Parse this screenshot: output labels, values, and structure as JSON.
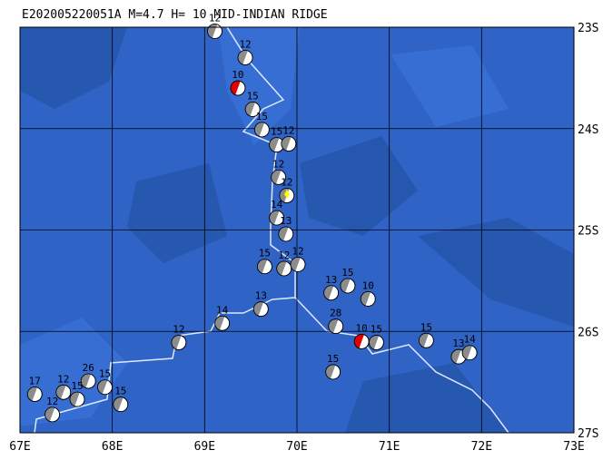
{
  "title": "E202005220051A M=4.7 H= 10 MID-INDIAN RIDGE",
  "lon_ticks": [
    {
      "value": 67,
      "label": "67E"
    },
    {
      "value": 68,
      "label": "68E"
    },
    {
      "value": 69,
      "label": "69E"
    },
    {
      "value": 70,
      "label": "70E"
    },
    {
      "value": 71,
      "label": "71E"
    },
    {
      "value": 72,
      "label": "72E"
    },
    {
      "value": 73,
      "label": "73E"
    }
  ],
  "lat_ticks": [
    {
      "value": 23,
      "label": "23S"
    },
    {
      "value": 24,
      "label": "24S"
    },
    {
      "value": 25,
      "label": "25S"
    },
    {
      "value": 26,
      "label": "26S"
    },
    {
      "value": 27,
      "label": "27S"
    }
  ],
  "events": [
    {
      "lon": 69.11,
      "lat": 23.04,
      "depth": 12,
      "color": "#8c8c8c"
    },
    {
      "lon": 69.44,
      "lat": 23.3,
      "depth": 12,
      "color": "#8c8c8c"
    },
    {
      "lon": 69.52,
      "lat": 23.81,
      "depth": 15,
      "color": "#8c8c8c"
    },
    {
      "lon": 69.62,
      "lat": 24.01,
      "depth": 15,
      "color": "#8c8c8c"
    },
    {
      "lon": 69.78,
      "lat": 24.16,
      "depth": 15,
      "color": "#8c8c8c"
    },
    {
      "lon": 69.91,
      "lat": 24.15,
      "depth": 12,
      "color": "#8c8c8c"
    },
    {
      "lon": 69.8,
      "lat": 24.48,
      "depth": 12,
      "color": "#8c8c8c"
    },
    {
      "lon": 69.89,
      "lat": 24.66,
      "depth": 12,
      "color": "#8c8c8c"
    },
    {
      "lon": 69.78,
      "lat": 24.88,
      "depth": 14,
      "color": "#8c8c8c"
    },
    {
      "lon": 69.88,
      "lat": 25.04,
      "depth": 13,
      "color": "#8c8c8c"
    },
    {
      "lon": 69.65,
      "lat": 25.36,
      "depth": 15,
      "color": "#8c8c8c"
    },
    {
      "lon": 69.86,
      "lat": 25.38,
      "depth": 12,
      "color": "#8c8c8c"
    },
    {
      "lon": 70.01,
      "lat": 25.34,
      "depth": 12,
      "color": "#8c8c8c"
    },
    {
      "lon": 70.37,
      "lat": 25.62,
      "depth": 13,
      "color": "#8c8c8c"
    },
    {
      "lon": 70.55,
      "lat": 25.55,
      "depth": 15,
      "color": "#8c8c8c"
    },
    {
      "lon": 70.77,
      "lat": 25.68,
      "depth": 10,
      "color": "#8c8c8c"
    },
    {
      "lon": 70.42,
      "lat": 25.95,
      "depth": 28,
      "color": "#8c8c8c"
    },
    {
      "lon": 70.86,
      "lat": 26.11,
      "depth": 15,
      "color": "#8c8c8c"
    },
    {
      "lon": 71.4,
      "lat": 26.09,
      "depth": 15,
      "color": "#8c8c8c"
    },
    {
      "lon": 71.75,
      "lat": 26.25,
      "depth": 13,
      "color": "#8c8c8c"
    },
    {
      "lon": 71.87,
      "lat": 26.21,
      "depth": 14,
      "color": "#8c8c8c"
    },
    {
      "lon": 70.39,
      "lat": 26.4,
      "depth": 15,
      "color": "#8c8c8c"
    },
    {
      "lon": 69.61,
      "lat": 25.78,
      "depth": 13,
      "color": "#8c8c8c"
    },
    {
      "lon": 69.19,
      "lat": 25.92,
      "depth": 14,
      "color": "#8c8c8c"
    },
    {
      "lon": 68.72,
      "lat": 26.11,
      "depth": 12,
      "color": "#8c8c8c"
    },
    {
      "lon": 68.09,
      "lat": 26.72,
      "depth": 15,
      "color": "#8c8c8c"
    },
    {
      "lon": 67.74,
      "lat": 26.49,
      "depth": 26,
      "color": "#8c8c8c"
    },
    {
      "lon": 67.92,
      "lat": 26.55,
      "depth": 15,
      "color": "#8c8c8c"
    },
    {
      "lon": 67.16,
      "lat": 26.62,
      "depth": 17,
      "color": "#8c8c8c"
    },
    {
      "lon": 67.47,
      "lat": 26.6,
      "depth": 12,
      "color": "#8c8c8c"
    },
    {
      "lon": 67.35,
      "lat": 26.82,
      "depth": 12,
      "color": "#8c8c8c"
    },
    {
      "lon": 67.62,
      "lat": 26.67,
      "depth": 15,
      "color": "#8c8c8c"
    },
    {
      "lon": 69.36,
      "lat": 23.6,
      "depth": 10,
      "color": "#e00000"
    },
    {
      "lon": 70.7,
      "lat": 26.1,
      "depth": 10,
      "color": "#e00000"
    }
  ]
}
